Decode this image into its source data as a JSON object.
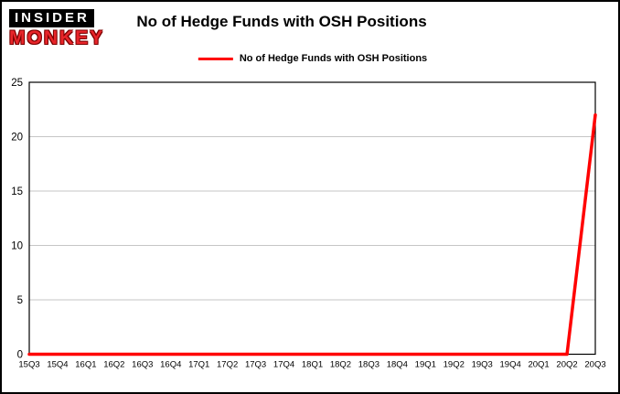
{
  "logo": {
    "line1": "INSIDER",
    "line2": "MONKEY",
    "accent_color": "#e8252a"
  },
  "header": {
    "title": "No of Hedge Funds with OSH Positions"
  },
  "legend": {
    "label": "No of Hedge Funds with OSH Positions",
    "color": "#ff0000"
  },
  "chart_data": {
    "type": "line",
    "title": "No of Hedge Funds with OSH Positions",
    "categories": [
      "15Q3",
      "15Q4",
      "16Q1",
      "16Q2",
      "16Q3",
      "16Q4",
      "17Q1",
      "17Q2",
      "17Q3",
      "17Q4",
      "18Q1",
      "18Q2",
      "18Q3",
      "18Q4",
      "19Q1",
      "19Q2",
      "19Q3",
      "19Q4",
      "20Q1",
      "20Q2",
      "20Q3"
    ],
    "values": [
      0,
      0,
      0,
      0,
      0,
      0,
      0,
      0,
      0,
      0,
      0,
      0,
      0,
      0,
      0,
      0,
      0,
      0,
      0,
      0,
      22
    ],
    "xlabel": "",
    "ylabel": "",
    "ylim": [
      0,
      25
    ],
    "yticks": [
      0,
      5,
      10,
      15,
      20,
      25
    ],
    "line_color": "#ff0000",
    "grid": true,
    "gridline_color": "#c6c6c6",
    "legend_position": "top"
  }
}
